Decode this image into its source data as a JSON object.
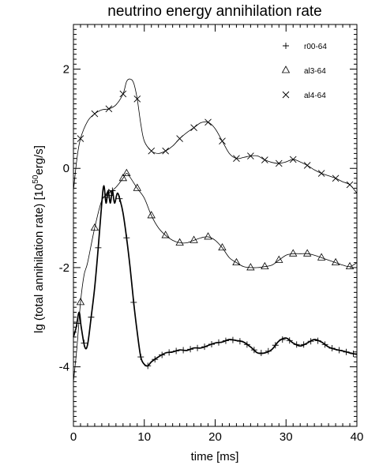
{
  "chart_data": {
    "type": "line",
    "title": "neutrino energy annihilation rate",
    "xlabel": "time [ms]",
    "ylabel_parts": {
      "main": "lg (total annihilation rate) [10",
      "sup": "50",
      "tail": "erg/s]"
    },
    "xlim": [
      0,
      40
    ],
    "ylim": [
      -5.2,
      2.9
    ],
    "x_ticks": [
      0,
      10,
      20,
      30,
      40
    ],
    "y_ticks": [
      -4,
      -2,
      0,
      2
    ],
    "x_tick_labels": [
      "0",
      "10",
      "20",
      "30",
      "40"
    ],
    "y_tick_labels": [
      "-4",
      "-2",
      "0",
      "2"
    ],
    "grid": false,
    "legend_position": "top-right",
    "series": [
      {
        "name": "r00-64",
        "marker": "+",
        "stroke_width": 1.7,
        "points": [
          [
            0,
            -3.4
          ],
          [
            0.4,
            -3.2
          ],
          [
            0.8,
            -2.9
          ],
          [
            1.1,
            -3.2
          ],
          [
            1.6,
            -3.6
          ],
          [
            2,
            -3.55
          ],
          [
            2.5,
            -3.0
          ],
          [
            3,
            -2.4
          ],
          [
            3.5,
            -1.6
          ],
          [
            4,
            -0.7
          ],
          [
            4.3,
            -0.35
          ],
          [
            4.6,
            -0.7
          ],
          [
            4.9,
            -0.45
          ],
          [
            5.2,
            -0.7
          ],
          [
            5.5,
            -0.45
          ],
          [
            5.8,
            -0.7
          ],
          [
            6.2,
            -0.5
          ],
          [
            6.6,
            -0.65
          ],
          [
            7,
            -0.9
          ],
          [
            7.5,
            -1.4
          ],
          [
            8,
            -2.0
          ],
          [
            8.5,
            -2.7
          ],
          [
            9,
            -3.3
          ],
          [
            9.5,
            -3.8
          ],
          [
            10,
            -3.95
          ],
          [
            10.5,
            -3.98
          ],
          [
            11,
            -3.9
          ],
          [
            12,
            -3.8
          ],
          [
            13,
            -3.72
          ],
          [
            14,
            -3.7
          ],
          [
            15,
            -3.66
          ],
          [
            16,
            -3.67
          ],
          [
            17,
            -3.62
          ],
          [
            18,
            -3.62
          ],
          [
            19,
            -3.57
          ],
          [
            20,
            -3.52
          ],
          [
            21,
            -3.5
          ],
          [
            22,
            -3.45
          ],
          [
            23,
            -3.47
          ],
          [
            24,
            -3.5
          ],
          [
            25,
            -3.6
          ],
          [
            26,
            -3.72
          ],
          [
            27,
            -3.72
          ],
          [
            28,
            -3.65
          ],
          [
            29,
            -3.48
          ],
          [
            30,
            -3.42
          ],
          [
            31,
            -3.52
          ],
          [
            32,
            -3.58
          ],
          [
            33,
            -3.52
          ],
          [
            34,
            -3.45
          ],
          [
            35,
            -3.5
          ],
          [
            36,
            -3.6
          ],
          [
            37,
            -3.65
          ],
          [
            38,
            -3.68
          ],
          [
            39,
            -3.72
          ],
          [
            40,
            -3.75
          ]
        ],
        "markers_x": [
          0.5,
          1.5,
          2.5,
          3.5,
          4.5,
          5.5,
          6.5,
          7.5,
          8.5,
          9.5,
          10.5,
          11.5,
          12.5,
          13.5,
          14.5,
          15.5,
          16.5,
          17.5,
          18.5,
          19.5,
          20.5,
          21.5,
          22.5,
          23.5,
          24.5,
          25.5,
          26.5,
          27.5,
          28.5,
          29.5,
          30.5,
          31.5,
          32.5,
          33.5,
          34.5,
          35.5,
          36.5,
          37.5,
          38.5,
          39.5
        ]
      },
      {
        "name": "al3-64",
        "marker": "triangle",
        "stroke_width": 0.8,
        "points": [
          [
            0,
            -4.3
          ],
          [
            0.5,
            -3.6
          ],
          [
            1,
            -2.7
          ],
          [
            1.5,
            -2.15
          ],
          [
            2,
            -1.9
          ],
          [
            3,
            -1.2
          ],
          [
            4,
            -0.65
          ],
          [
            5,
            -0.5
          ],
          [
            6,
            -0.38
          ],
          [
            7,
            -0.2
          ],
          [
            7.5,
            -0.1
          ],
          [
            8,
            -0.18
          ],
          [
            9,
            -0.4
          ],
          [
            10,
            -0.6
          ],
          [
            11,
            -0.95
          ],
          [
            12,
            -1.2
          ],
          [
            13,
            -1.35
          ],
          [
            14,
            -1.45
          ],
          [
            15,
            -1.5
          ],
          [
            16,
            -1.5
          ],
          [
            17,
            -1.45
          ],
          [
            18,
            -1.4
          ],
          [
            19,
            -1.38
          ],
          [
            20,
            -1.45
          ],
          [
            21,
            -1.6
          ],
          [
            22,
            -1.8
          ],
          [
            23,
            -1.9
          ],
          [
            24,
            -1.98
          ],
          [
            25,
            -2.0
          ],
          [
            26,
            -2.0
          ],
          [
            27,
            -1.98
          ],
          [
            28,
            -1.95
          ],
          [
            29,
            -1.85
          ],
          [
            30,
            -1.75
          ],
          [
            31,
            -1.72
          ],
          [
            32,
            -1.72
          ],
          [
            33,
            -1.72
          ],
          [
            34,
            -1.75
          ],
          [
            35,
            -1.8
          ],
          [
            36,
            -1.85
          ],
          [
            37,
            -1.9
          ],
          [
            38,
            -1.95
          ],
          [
            39,
            -1.98
          ],
          [
            40,
            -1.9
          ]
        ],
        "markers_x": [
          1,
          3,
          5,
          7,
          7.5,
          9,
          11,
          13,
          15,
          17,
          19,
          21,
          23,
          25,
          27,
          29,
          31,
          33,
          35,
          37,
          39
        ]
      },
      {
        "name": "al4-64",
        "marker": "x",
        "stroke_width": 0.8,
        "points": [
          [
            0,
            -0.45
          ],
          [
            0.5,
            0.2
          ],
          [
            1,
            0.6
          ],
          [
            2,
            0.95
          ],
          [
            3,
            1.1
          ],
          [
            4,
            1.18
          ],
          [
            5,
            1.2
          ],
          [
            6,
            1.28
          ],
          [
            7,
            1.5
          ],
          [
            7.5,
            1.75
          ],
          [
            8,
            1.8
          ],
          [
            8.5,
            1.72
          ],
          [
            9,
            1.4
          ],
          [
            9.5,
            0.9
          ],
          [
            10,
            0.55
          ],
          [
            11,
            0.35
          ],
          [
            12,
            0.3
          ],
          [
            13,
            0.35
          ],
          [
            14,
            0.45
          ],
          [
            15,
            0.6
          ],
          [
            16,
            0.72
          ],
          [
            17,
            0.82
          ],
          [
            18,
            0.92
          ],
          [
            19,
            0.93
          ],
          [
            20,
            0.8
          ],
          [
            21,
            0.55
          ],
          [
            22,
            0.3
          ],
          [
            23,
            0.2
          ],
          [
            24,
            0.22
          ],
          [
            25,
            0.25
          ],
          [
            26,
            0.25
          ],
          [
            27,
            0.17
          ],
          [
            28,
            0.12
          ],
          [
            29,
            0.1
          ],
          [
            30,
            0.13
          ],
          [
            31,
            0.18
          ],
          [
            32,
            0.13
          ],
          [
            33,
            0.06
          ],
          [
            34,
            -0.03
          ],
          [
            35,
            -0.1
          ],
          [
            36,
            -0.15
          ],
          [
            37,
            -0.2
          ],
          [
            38,
            -0.27
          ],
          [
            39,
            -0.33
          ],
          [
            40,
            -0.5
          ]
        ],
        "markers_x": [
          1,
          3,
          5,
          7,
          9,
          11,
          13,
          15,
          17,
          19,
          21,
          23,
          25,
          27,
          29,
          31,
          33,
          35,
          37,
          39
        ]
      }
    ]
  },
  "legend": {
    "markers": [
      "+",
      "triangle",
      "x"
    ],
    "labels": [
      "r00-64",
      "al3-64",
      "al4-64"
    ]
  },
  "colors": {
    "axis": "#000000",
    "line": "#000000",
    "background": "#ffffff"
  }
}
